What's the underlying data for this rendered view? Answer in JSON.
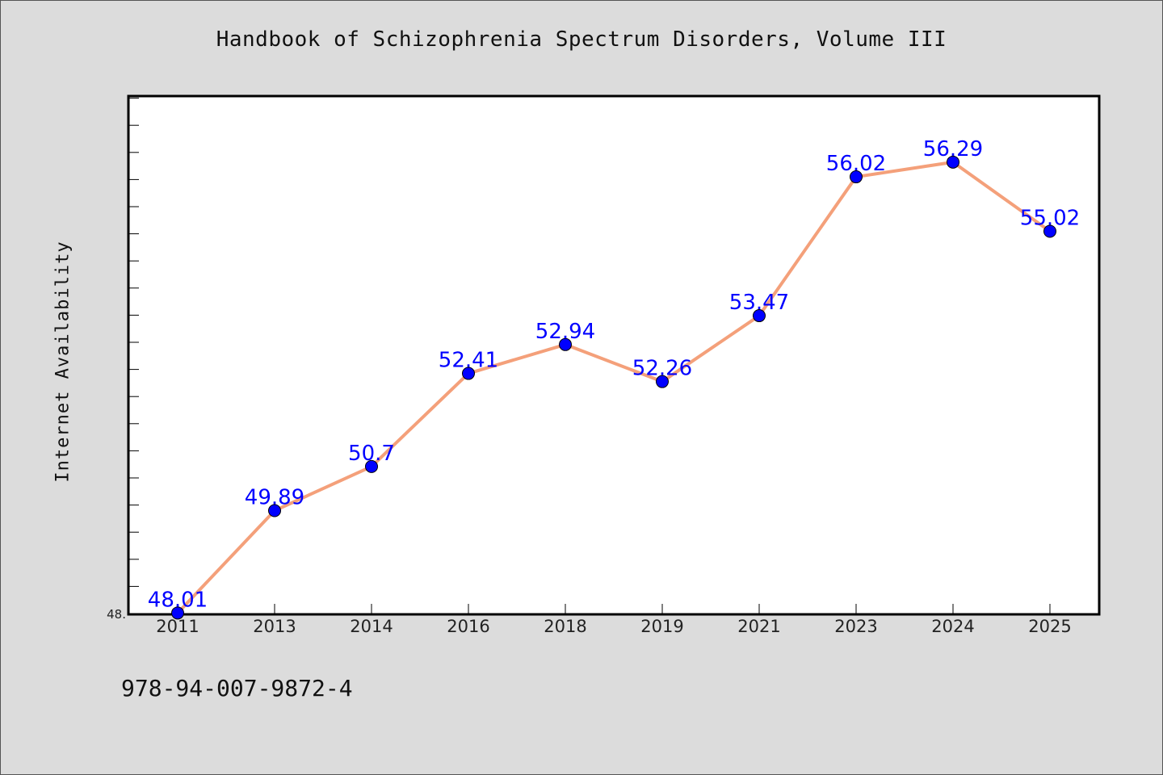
{
  "header": {
    "title": "Handbook of Schizophrenia Spectrum Disorders, Volume III"
  },
  "footer": {
    "isbn": "978-94-007-9872-4"
  },
  "chart_data": {
    "type": "line",
    "title": "Handbook of Schizophrenia Spectrum Disorders, Volume III",
    "xlabel": "",
    "ylabel": "Internet Availability",
    "categories": [
      "2011",
      "2013",
      "2014",
      "2016",
      "2018",
      "2019",
      "2021",
      "2023",
      "2024",
      "2025"
    ],
    "series": [
      {
        "values": [
          48.01,
          49.89,
          50.7,
          52.41,
          52.94,
          52.26,
          53.47,
          56.02,
          56.29,
          55.02
        ],
        "labels": [
          "48.01",
          "49.89",
          "50.7",
          "52.41",
          "52.94",
          "52.26",
          "53.47",
          "56.02",
          "56.29",
          "55.02"
        ]
      }
    ],
    "ylim": [
      48.0,
      57.5
    ],
    "y_tick_labels": [
      {
        "value": 48.0,
        "label": "48."
      }
    ],
    "colors": {
      "line": "#f4a07a",
      "marker": "#0000ff",
      "label": "#0000ff",
      "plot_bg": "#ffffff",
      "figure_bg": "#dcdcdc"
    },
    "grid": false,
    "legend": "none"
  }
}
